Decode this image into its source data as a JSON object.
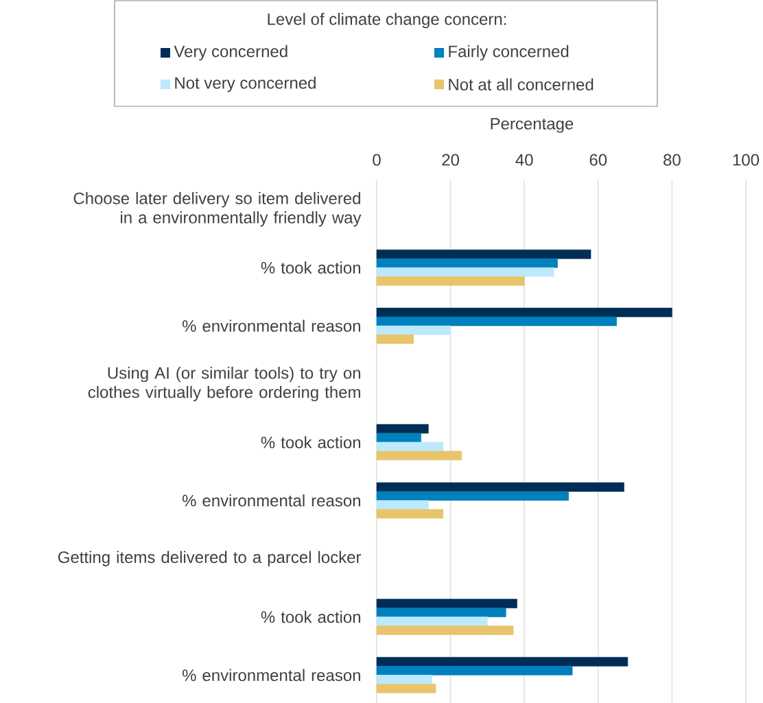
{
  "chart_data": {
    "type": "bar",
    "orientation": "horizontal",
    "xlabel": "Percentage",
    "legend_title": "Level of climate change concern:",
    "legend": "top",
    "categories": [
      "Choose later delivery so item delivered in a environmentally friendly way",
      "% took action",
      "% environmental reason",
      "Using AI (or similar tools) to try on clothes virtually before ordering them",
      "% took action",
      "% environmental reason",
      "Getting items delivered to a parcel locker",
      "% took action",
      "% environmental reason"
    ],
    "series": [
      {
        "name": "Very concerned",
        "color": "#002d56",
        "values": [
          null,
          58,
          80,
          null,
          14,
          67,
          null,
          38,
          68
        ]
      },
      {
        "name": "Fairly concerned",
        "color": "#0080bd",
        "values": [
          null,
          49,
          65,
          null,
          12,
          52,
          null,
          35,
          53
        ]
      },
      {
        "name": "Not very concerned",
        "color": "#bde9fd",
        "values": [
          null,
          48,
          20,
          null,
          18,
          14,
          null,
          30,
          15
        ]
      },
      {
        "name": "Not at all concerned",
        "color": "#e8c46c",
        "values": [
          null,
          40,
          10,
          null,
          23,
          18,
          null,
          37,
          16
        ]
      }
    ],
    "xlim": [
      0,
      100
    ],
    "xticks": [
      0,
      20,
      40,
      60,
      80,
      100
    ],
    "grid": "x"
  }
}
